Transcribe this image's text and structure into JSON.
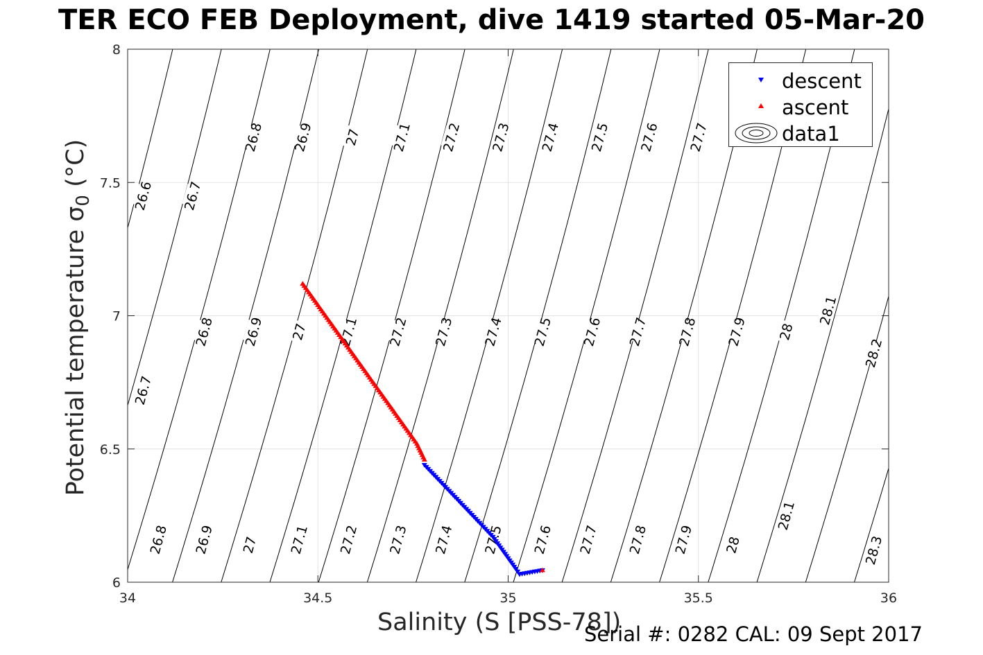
{
  "title": "TER ECO FEB Deployment, dive 1419 started 05-Mar-20",
  "footer": "Serial #: 0282  CAL: 09 Sept 2017",
  "chart_data": {
    "type": "scatter",
    "xlabel": "Salinity (S [PSS-78])",
    "ylabel_main": "Potential temperature σ",
    "ylabel_sub": "0",
    "ylabel_unit": " (°C)",
    "xlim": [
      34,
      36
    ],
    "ylim": [
      6,
      8
    ],
    "xticks": [
      "34",
      "34.5",
      "35",
      "35.5",
      "36"
    ],
    "yticks": [
      "6",
      "6.5",
      "7",
      "7.5",
      "8"
    ],
    "grid": true,
    "legend_placement": "top-right",
    "series": [
      {
        "name": "descent",
        "marker": "triangle-down",
        "color": "#0000ff",
        "x": [
          34.78,
          34.8,
          34.82,
          34.84,
          34.86,
          34.88,
          34.9,
          34.92,
          34.94,
          34.96,
          34.98,
          35.0,
          35.02,
          35.03,
          35.05,
          35.07,
          35.09
        ],
        "y": [
          6.44,
          6.41,
          6.38,
          6.35,
          6.32,
          6.29,
          6.26,
          6.23,
          6.2,
          6.17,
          6.13,
          6.09,
          6.05,
          6.03,
          6.035,
          6.04,
          6.045
        ]
      },
      {
        "name": "ascent",
        "marker": "triangle-up",
        "color": "#ff0000",
        "x": [
          34.46,
          34.48,
          34.5,
          34.52,
          34.54,
          34.56,
          34.58,
          34.6,
          34.62,
          34.64,
          34.66,
          34.68,
          34.7,
          34.72,
          34.74,
          34.76,
          34.78,
          35.09
        ],
        "y": [
          7.12,
          7.08,
          7.04,
          7.0,
          6.96,
          6.92,
          6.88,
          6.84,
          6.8,
          6.76,
          6.72,
          6.68,
          6.64,
          6.6,
          6.56,
          6.52,
          6.46,
          6.045
        ]
      },
      {
        "name": "data1",
        "type": "contour",
        "color": "#000000",
        "levels": [
          26.6,
          26.7,
          26.8,
          26.9,
          27,
          27.1,
          27.2,
          27.3,
          27.4,
          27.5,
          27.6,
          27.7,
          27.8,
          27.9,
          28,
          28.1,
          28.2,
          28.3
        ]
      }
    ],
    "contour_labels": [
      {
        "text": "26.6",
        "x": 34.04,
        "y": 7.45
      },
      {
        "text": "26.7",
        "x": 34.17,
        "y": 7.45
      },
      {
        "text": "26.8",
        "x": 34.33,
        "y": 7.67
      },
      {
        "text": "26.9",
        "x": 34.46,
        "y": 7.67
      },
      {
        "text": "27",
        "x": 34.59,
        "y": 7.67
      },
      {
        "text": "27.1",
        "x": 34.72,
        "y": 7.67
      },
      {
        "text": "27.2",
        "x": 34.85,
        "y": 7.67
      },
      {
        "text": "27.3",
        "x": 34.98,
        "y": 7.67
      },
      {
        "text": "27.4",
        "x": 35.11,
        "y": 7.67
      },
      {
        "text": "27.5",
        "x": 35.24,
        "y": 7.67
      },
      {
        "text": "27.6",
        "x": 35.37,
        "y": 7.67
      },
      {
        "text": "27.7",
        "x": 35.5,
        "y": 7.67
      },
      {
        "text": "26.7",
        "x": 34.04,
        "y": 6.72
      },
      {
        "text": "26.8",
        "x": 34.2,
        "y": 6.94
      },
      {
        "text": "26.9",
        "x": 34.33,
        "y": 6.94
      },
      {
        "text": "27",
        "x": 34.45,
        "y": 6.94
      },
      {
        "text": "27.1",
        "x": 34.58,
        "y": 6.94
      },
      {
        "text": "27.2",
        "x": 34.71,
        "y": 6.94
      },
      {
        "text": "27.3",
        "x": 34.83,
        "y": 6.94
      },
      {
        "text": "27.4",
        "x": 34.96,
        "y": 6.94
      },
      {
        "text": "27.5",
        "x": 35.09,
        "y": 6.94
      },
      {
        "text": "27.6",
        "x": 35.22,
        "y": 6.94
      },
      {
        "text": "27.7",
        "x": 35.34,
        "y": 6.94
      },
      {
        "text": "27.8",
        "x": 35.47,
        "y": 6.94
      },
      {
        "text": "27.9",
        "x": 35.6,
        "y": 6.94
      },
      {
        "text": "28",
        "x": 35.73,
        "y": 6.94
      },
      {
        "text": "28.1",
        "x": 35.84,
        "y": 7.02
      },
      {
        "text": "28.2",
        "x": 35.96,
        "y": 6.86
      },
      {
        "text": "26.8",
        "x": 34.08,
        "y": 6.16
      },
      {
        "text": "26.9",
        "x": 34.2,
        "y": 6.16
      },
      {
        "text": "27",
        "x": 34.32,
        "y": 6.14
      },
      {
        "text": "27.1",
        "x": 34.45,
        "y": 6.16
      },
      {
        "text": "27.2",
        "x": 34.58,
        "y": 6.16
      },
      {
        "text": "27.3",
        "x": 34.71,
        "y": 6.16
      },
      {
        "text": "27.4",
        "x": 34.83,
        "y": 6.16
      },
      {
        "text": "27.5",
        "x": 34.96,
        "y": 6.16
      },
      {
        "text": "27.6",
        "x": 35.09,
        "y": 6.16
      },
      {
        "text": "27.7",
        "x": 35.21,
        "y": 6.16
      },
      {
        "text": "27.8",
        "x": 35.34,
        "y": 6.16
      },
      {
        "text": "27.9",
        "x": 35.46,
        "y": 6.16
      },
      {
        "text": "28",
        "x": 35.59,
        "y": 6.14
      },
      {
        "text": "28.1",
        "x": 35.73,
        "y": 6.25
      },
      {
        "text": "28.3",
        "x": 35.96,
        "y": 6.12
      }
    ]
  }
}
